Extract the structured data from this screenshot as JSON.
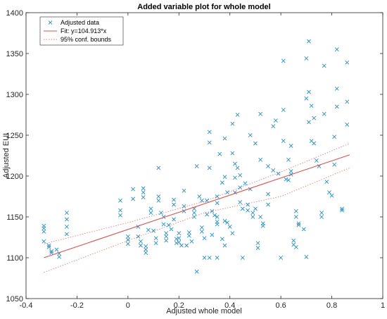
{
  "chart_data": {
    "type": "scatter",
    "title": "Added variable plot for whole model",
    "xlabel": "Adjusted whole model",
    "ylabel": "Adjusted EUI",
    "xlim": [
      -0.4,
      1
    ],
    "ylim": [
      1050,
      1400
    ],
    "xticks": [
      -0.4,
      -0.2,
      0,
      0.2,
      0.4,
      0.6,
      0.8,
      1
    ],
    "xtick_labels": [
      "-0.4",
      "-0.2",
      "0",
      "0.2",
      "0.4",
      "0.6",
      "0.8",
      "1"
    ],
    "yticks": [
      1050,
      1100,
      1150,
      1200,
      1250,
      1300,
      1350,
      1400
    ],
    "ytick_labels": [
      "1050",
      "1100",
      "1150",
      "1200",
      "1250",
      "1300",
      "1350",
      "1400"
    ],
    "grid": false,
    "legend_position": "top-left",
    "series": [
      {
        "name": "Adjusted data",
        "kind": "scatter",
        "marker": "x",
        "color": "#2b8fbf",
        "points": [
          [
            -0.33,
            1139
          ],
          [
            -0.33,
            1136
          ],
          [
            -0.33,
            1132
          ],
          [
            -0.33,
            1120
          ],
          [
            -0.31,
            1115
          ],
          [
            -0.31,
            1113
          ],
          [
            -0.3,
            1108
          ],
          [
            -0.3,
            1106
          ],
          [
            -0.28,
            1110
          ],
          [
            -0.27,
            1105
          ],
          [
            -0.27,
            1101
          ],
          [
            -0.24,
            1155
          ],
          [
            -0.24,
            1147
          ],
          [
            -0.24,
            1138
          ],
          [
            -0.24,
            1129
          ],
          [
            -0.03,
            1170
          ],
          [
            -0.03,
            1158
          ],
          [
            -0.03,
            1152
          ],
          [
            0,
            1126
          ],
          [
            0,
            1122
          ],
          [
            0,
            1117
          ],
          [
            0.02,
            1184
          ],
          [
            0.02,
            1172
          ],
          [
            0.04,
            1138
          ],
          [
            0.04,
            1126
          ],
          [
            0.05,
            1120
          ],
          [
            0.05,
            1115
          ],
          [
            0.06,
            1185
          ],
          [
            0.06,
            1180
          ],
          [
            0.06,
            1174
          ],
          [
            0.07,
            1114
          ],
          [
            0.07,
            1110
          ],
          [
            0.07,
            1106
          ],
          [
            0.08,
            1134
          ],
          [
            0.09,
            1160
          ],
          [
            0.09,
            1155
          ],
          [
            0.1,
            1133
          ],
          [
            0.11,
            1124
          ],
          [
            0.11,
            1118
          ],
          [
            0.12,
            1210
          ],
          [
            0.12,
            1175
          ],
          [
            0.12,
            1170
          ],
          [
            0.13,
            1155
          ],
          [
            0.14,
            1150
          ],
          [
            0.14,
            1141
          ],
          [
            0.15,
            1130
          ],
          [
            0.15,
            1126
          ],
          [
            0.15,
            1121
          ],
          [
            0.16,
            1140
          ],
          [
            0.17,
            1135
          ],
          [
            0.18,
            1171
          ],
          [
            0.18,
            1165
          ],
          [
            0.18,
            1147
          ],
          [
            0.19,
            1123
          ],
          [
            0.19,
            1118
          ],
          [
            0.2,
            1130
          ],
          [
            0.2,
            1124
          ],
          [
            0.2,
            1119
          ],
          [
            0.21,
            1115
          ],
          [
            0.22,
            1182
          ],
          [
            0.22,
            1163
          ],
          [
            0.22,
            1157
          ],
          [
            0.23,
            1115
          ],
          [
            0.24,
            1131
          ],
          [
            0.24,
            1127
          ],
          [
            0.25,
            1120
          ],
          [
            0.26,
            1160
          ],
          [
            0.26,
            1155
          ],
          [
            0.26,
            1150
          ],
          [
            0.27,
            1212
          ],
          [
            0.27,
            1083
          ],
          [
            0.28,
            1175
          ],
          [
            0.29,
            1170
          ],
          [
            0.29,
            1137
          ],
          [
            0.29,
            1132
          ],
          [
            0.3,
            1124
          ],
          [
            0.3,
            1100
          ],
          [
            0.31,
            1170
          ],
          [
            0.31,
            1153
          ],
          [
            0.32,
            1254
          ],
          [
            0.32,
            1241
          ],
          [
            0.32,
            1210
          ],
          [
            0.32,
            1100
          ],
          [
            0.33,
            1157
          ],
          [
            0.33,
            1128
          ],
          [
            0.34,
            1152
          ],
          [
            0.35,
            1175
          ],
          [
            0.35,
            1167
          ],
          [
            0.35,
            1150
          ],
          [
            0.35,
            1144
          ],
          [
            0.35,
            1141
          ],
          [
            0.35,
            1100
          ],
          [
            0.36,
            1227
          ],
          [
            0.37,
            1192
          ],
          [
            0.37,
            1123
          ],
          [
            0.38,
            1246
          ],
          [
            0.38,
            1199
          ],
          [
            0.38,
            1145
          ],
          [
            0.38,
            1115
          ],
          [
            0.39,
            1180
          ],
          [
            0.39,
            1143
          ],
          [
            0.4,
            1138
          ],
          [
            0.41,
            1264
          ],
          [
            0.41,
            1228
          ],
          [
            0.41,
            1130
          ],
          [
            0.42,
            1215
          ],
          [
            0.42,
            1198
          ],
          [
            0.42,
            1180
          ],
          [
            0.43,
            1275
          ],
          [
            0.43,
            1210
          ],
          [
            0.44,
            1201
          ],
          [
            0.44,
            1186
          ],
          [
            0.44,
            1168
          ],
          [
            0.45,
            1160
          ],
          [
            0.45,
            1100
          ],
          [
            0.46,
            1191
          ],
          [
            0.47,
            1165
          ],
          [
            0.47,
            1158
          ],
          [
            0.48,
            1250
          ],
          [
            0.48,
            1184
          ],
          [
            0.49,
            1155
          ],
          [
            0.49,
            1150
          ],
          [
            0.5,
            1240
          ],
          [
            0.5,
            1160
          ],
          [
            0.51,
            1118
          ],
          [
            0.51,
            1112
          ],
          [
            0.52,
            1276
          ],
          [
            0.52,
            1220
          ],
          [
            0.52,
            1150
          ],
          [
            0.53,
            1142
          ],
          [
            0.53,
            1139
          ],
          [
            0.55,
            1212
          ],
          [
            0.55,
            1178
          ],
          [
            0.55,
            1165
          ],
          [
            0.57,
            1261
          ],
          [
            0.57,
            1207
          ],
          [
            0.58,
            1268
          ],
          [
            0.59,
            1203
          ],
          [
            0.6,
            1100
          ],
          [
            0.61,
            1341
          ],
          [
            0.61,
            1281
          ],
          [
            0.61,
            1243
          ],
          [
            0.62,
            1196
          ],
          [
            0.63,
            1220
          ],
          [
            0.63,
            1195
          ],
          [
            0.64,
            1237
          ],
          [
            0.64,
            1206
          ],
          [
            0.64,
            1202
          ],
          [
            0.65,
            1121
          ],
          [
            0.65,
            1116
          ],
          [
            0.66,
            1157
          ],
          [
            0.66,
            1150
          ],
          [
            0.66,
            1113
          ],
          [
            0.67,
            1142
          ],
          [
            0.67,
            1140
          ],
          [
            0.69,
            1135
          ],
          [
            0.7,
            1344
          ],
          [
            0.7,
            1295
          ],
          [
            0.7,
            1101
          ],
          [
            0.71,
            1365
          ],
          [
            0.71,
            1303
          ],
          [
            0.71,
            1266
          ],
          [
            0.72,
            1286
          ],
          [
            0.72,
            1243
          ],
          [
            0.73,
            1271
          ],
          [
            0.73,
            1240
          ],
          [
            0.74,
            1219
          ],
          [
            0.75,
            1212
          ],
          [
            0.76,
            1155
          ],
          [
            0.76,
            1150
          ],
          [
            0.77,
            1335
          ],
          [
            0.77,
            1276
          ],
          [
            0.78,
            1193
          ],
          [
            0.79,
            1180
          ],
          [
            0.8,
            1176
          ],
          [
            0.81,
            1248
          ],
          [
            0.81,
            1214
          ],
          [
            0.82,
            1355
          ],
          [
            0.82,
            1307
          ],
          [
            0.82,
            1285
          ],
          [
            0.84,
            1160
          ],
          [
            0.84,
            1158
          ],
          [
            0.86,
            1339
          ],
          [
            0.86,
            1291
          ],
          [
            0.86,
            1263
          ]
        ]
      },
      {
        "name": "Fit: y=104.913*x",
        "kind": "line",
        "color": "#d9534f",
        "x": [
          -0.33,
          0.87
        ],
        "y": [
          1100,
          1226
        ]
      },
      {
        "name": "95% conf. bounds",
        "kind": "line",
        "dash": "dotted",
        "color": "#e08080",
        "upper": {
          "x": [
            -0.33,
            0,
            0.3,
            0.6,
            0.87
          ],
          "y": [
            1117,
            1143,
            1169,
            1205,
            1240
          ]
        },
        "lower": {
          "x": [
            -0.33,
            0,
            0.3,
            0.6,
            0.87
          ],
          "y": [
            1082,
            1121,
            1155,
            1175,
            1210
          ]
        }
      }
    ]
  }
}
